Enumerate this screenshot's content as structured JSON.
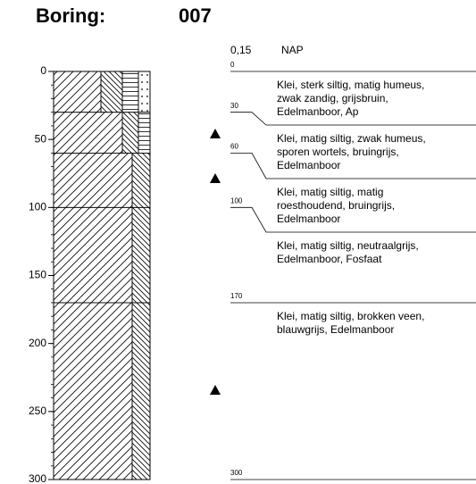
{
  "header": {
    "title": "Boring:",
    "id": "007"
  },
  "reference": {
    "elevation": "0,15",
    "datum": "NAP"
  },
  "depth_axis": {
    "range": [
      0,
      300
    ],
    "ticks": [
      0,
      50,
      100,
      150,
      200,
      250,
      300
    ],
    "minor_step": 10
  },
  "layers": [
    {
      "top": 0,
      "description": [
        "Klei, sterk siltig, matig humeus,",
        "zwak zandig, grijsbruin,",
        "Edelmanboor, Ap"
      ]
    },
    {
      "top": 30,
      "description": [
        "Klei, matig siltig, zwak humeus,",
        "sporen wortels, bruingrijs,",
        "Edelmanboor"
      ]
    },
    {
      "top": 60,
      "description": [
        "Klei, matig siltig, matig",
        "roesthoudend, bruingrijs,",
        "Edelmanboor"
      ]
    },
    {
      "top": 100,
      "description": [
        "Klei, matig siltig, neutraalgrijs,",
        "Edelmanboor, Fosfaat"
      ]
    },
    {
      "top": 170,
      "description": [
        "Klei, matig siltig, brokken veen,",
        "blauwgrijs, Edelmanboor"
      ]
    }
  ],
  "base": {
    "depth": 300
  }
}
